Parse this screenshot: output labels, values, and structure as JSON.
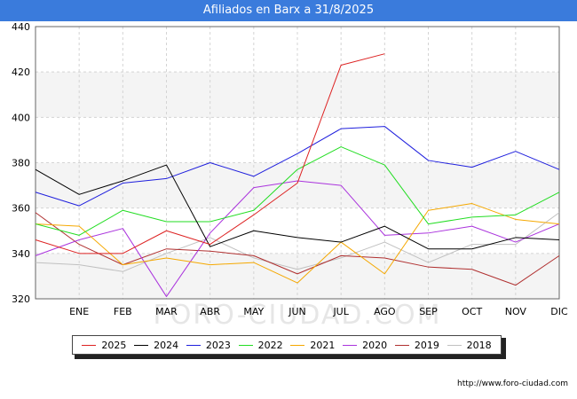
{
  "header": {
    "title": "Afiliados en Barx a 31/8/2025"
  },
  "footer": {
    "url": "http://www.foro-ciudad.com"
  },
  "watermark": "FORO-CIUDAD.COM",
  "chart_data": {
    "type": "line",
    "title": "Afiliados en Barx a 31/8/2025",
    "xlabel": "",
    "ylabel": "",
    "categories": [
      "",
      "ENE",
      "FEB",
      "MAR",
      "ABR",
      "MAY",
      "JUN",
      "JUL",
      "AGO",
      "SEP",
      "OCT",
      "NOV",
      "DIC"
    ],
    "ylim": [
      320,
      440
    ],
    "yticks": [
      320,
      340,
      360,
      380,
      400,
      420,
      440
    ],
    "grid": true,
    "legend_position": "bottom",
    "series": [
      {
        "name": "2025",
        "color": "#dd2222",
        "values": [
          346,
          340,
          340,
          350,
          344,
          357,
          371,
          423,
          428,
          null,
          null,
          null,
          null
        ]
      },
      {
        "name": "2024",
        "color": "#000000",
        "values": [
          377,
          366,
          372,
          379,
          343,
          350,
          347,
          345,
          352,
          342,
          342,
          347,
          346
        ]
      },
      {
        "name": "2023",
        "color": "#1f1fdd",
        "values": [
          367,
          361,
          371,
          373,
          380,
          374,
          384,
          395,
          396,
          381,
          378,
          385,
          377
        ]
      },
      {
        "name": "2022",
        "color": "#22dd22",
        "values": [
          353,
          348,
          359,
          354,
          354,
          359,
          377,
          387,
          379,
          353,
          356,
          357,
          367
        ]
      },
      {
        "name": "2021",
        "color": "#f5a800",
        "values": [
          353,
          352,
          335,
          338,
          335,
          336,
          327,
          345,
          331,
          359,
          362,
          355,
          353
        ]
      },
      {
        "name": "2020",
        "color": "#aa33dd",
        "values": [
          339,
          346,
          351,
          321,
          349,
          369,
          372,
          370,
          348,
          349,
          352,
          345,
          353
        ]
      },
      {
        "name": "2019",
        "color": "#b03030",
        "values": [
          358,
          344,
          335,
          342,
          341,
          339,
          331,
          339,
          338,
          334,
          333,
          326,
          339
        ]
      },
      {
        "name": "2018",
        "color": "#c0c0c0",
        "values": [
          336,
          335,
          332,
          340,
          347,
          338,
          333,
          338,
          345,
          336,
          344,
          344,
          358
        ]
      }
    ]
  }
}
